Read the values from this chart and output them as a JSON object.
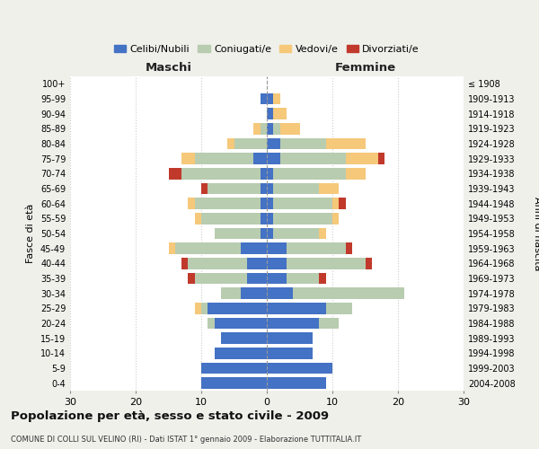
{
  "age_groups": [
    "0-4",
    "5-9",
    "10-14",
    "15-19",
    "20-24",
    "25-29",
    "30-34",
    "35-39",
    "40-44",
    "45-49",
    "50-54",
    "55-59",
    "60-64",
    "65-69",
    "70-74",
    "75-79",
    "80-84",
    "85-89",
    "90-94",
    "95-99",
    "100+"
  ],
  "birth_years": [
    "2004-2008",
    "1999-2003",
    "1994-1998",
    "1989-1993",
    "1984-1988",
    "1979-1983",
    "1974-1978",
    "1969-1973",
    "1964-1968",
    "1959-1963",
    "1954-1958",
    "1949-1953",
    "1944-1948",
    "1939-1943",
    "1934-1938",
    "1929-1933",
    "1924-1928",
    "1919-1923",
    "1914-1918",
    "1909-1913",
    "≤ 1908"
  ],
  "male_celibe": [
    10,
    10,
    8,
    7,
    8,
    9,
    4,
    3,
    3,
    4,
    1,
    1,
    1,
    1,
    1,
    2,
    0,
    0,
    0,
    1,
    0
  ],
  "male_coniugato": [
    0,
    0,
    0,
    0,
    1,
    1,
    3,
    8,
    9,
    10,
    7,
    9,
    10,
    8,
    12,
    9,
    5,
    1,
    0,
    0,
    0
  ],
  "male_vedovo": [
    0,
    0,
    0,
    0,
    0,
    1,
    0,
    0,
    0,
    1,
    0,
    1,
    1,
    0,
    0,
    2,
    1,
    1,
    0,
    0,
    0
  ],
  "male_divorziato": [
    0,
    0,
    0,
    0,
    0,
    0,
    0,
    1,
    1,
    0,
    0,
    0,
    0,
    1,
    2,
    0,
    0,
    0,
    0,
    0,
    0
  ],
  "fem_celibe": [
    9,
    10,
    7,
    7,
    8,
    9,
    4,
    3,
    3,
    3,
    1,
    1,
    1,
    1,
    1,
    2,
    2,
    1,
    1,
    1,
    0
  ],
  "fem_coniugato": [
    0,
    0,
    0,
    0,
    3,
    4,
    17,
    5,
    12,
    9,
    7,
    9,
    9,
    7,
    11,
    10,
    7,
    1,
    0,
    0,
    0
  ],
  "fem_vedovo": [
    0,
    0,
    0,
    0,
    0,
    0,
    0,
    0,
    0,
    0,
    1,
    1,
    1,
    3,
    3,
    5,
    6,
    3,
    2,
    1,
    0
  ],
  "fem_divorziato": [
    0,
    0,
    0,
    0,
    0,
    0,
    0,
    1,
    1,
    1,
    0,
    0,
    1,
    0,
    0,
    1,
    0,
    0,
    0,
    0,
    0
  ],
  "colors": {
    "celibe": "#4472C4",
    "coniugato": "#B8CCB0",
    "vedovo": "#F5C87A",
    "divorziato": "#C0392B"
  },
  "xlim": 30,
  "title": "Popolazione per età, sesso e stato civile - 2009",
  "subtitle": "COMUNE DI COLLI SUL VELINO (RI) - Dati ISTAT 1° gennaio 2009 - Elaborazione TUTTITALIA.IT",
  "ylabel_left": "Fasce di età",
  "ylabel_right": "Anni di nascita",
  "xlabel_male": "Maschi",
  "xlabel_female": "Femmine",
  "bg_color": "#f0f0eb",
  "bar_bg_color": "#ffffff",
  "legend_labels": [
    "Celibi/Nubili",
    "Coniugati/e",
    "Vedovi/e",
    "Divorziati/e"
  ]
}
